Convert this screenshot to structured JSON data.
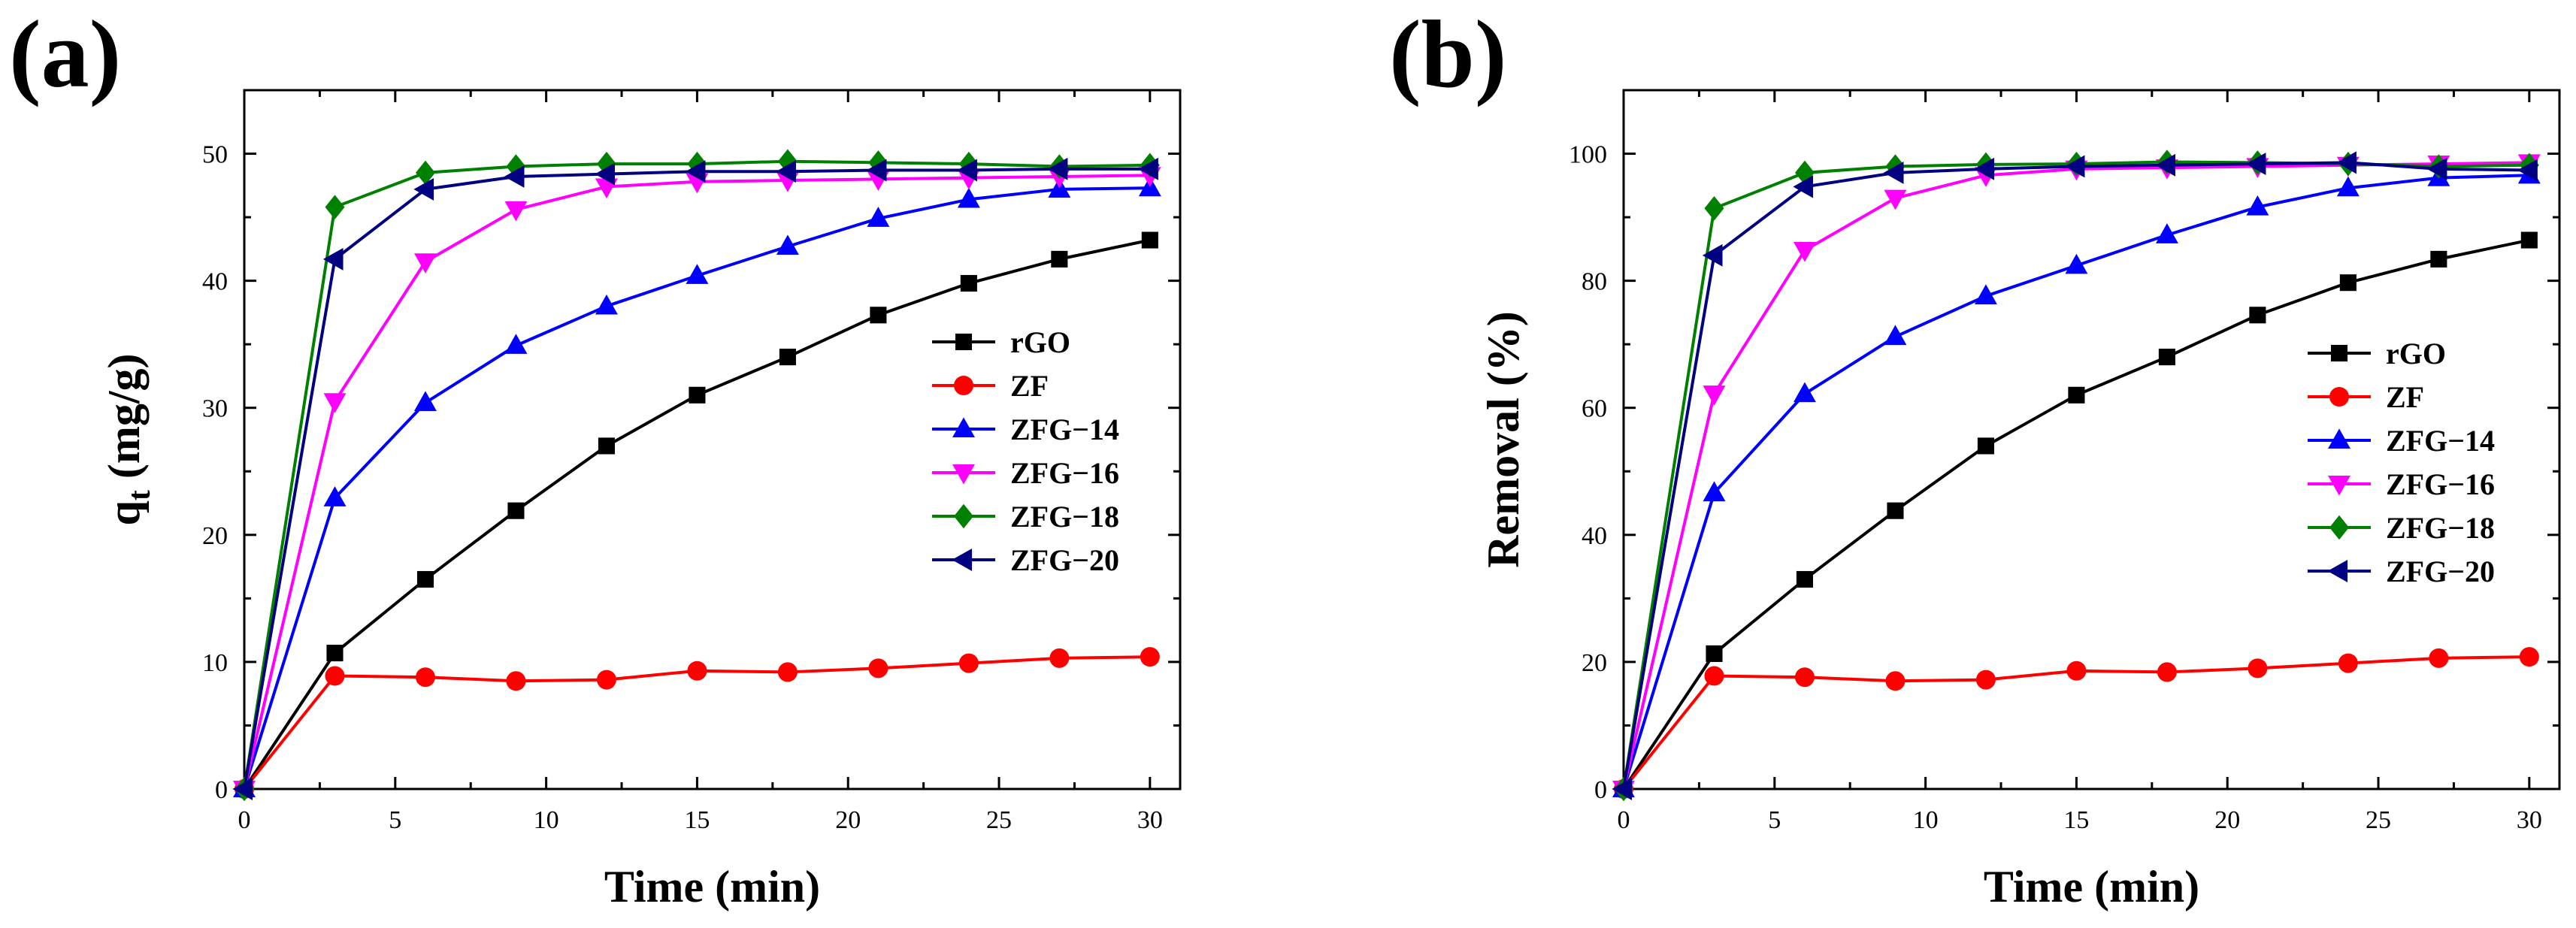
{
  "chart_data": [
    {
      "type": "line",
      "panel_label": "(a)",
      "xlabel": "Time (min)",
      "ylabel": {
        "base": "q",
        "sub": "t",
        "rest": " (mg/g)"
      },
      "xlim": [
        0,
        31
      ],
      "ylim": [
        0,
        55
      ],
      "xticks": [
        0,
        5,
        10,
        15,
        20,
        25,
        30
      ],
      "yticks": [
        0,
        10,
        20,
        30,
        40,
        50
      ],
      "grid": false,
      "legend_position": "right",
      "x": [
        0,
        3,
        6,
        9,
        12,
        15,
        18,
        21,
        24,
        27,
        30
      ],
      "series": [
        {
          "name": "rGO",
          "color": "#000000",
          "marker": "square",
          "values": [
            0,
            10.7,
            16.5,
            21.9,
            27.0,
            31.0,
            34.0,
            37.3,
            39.8,
            41.7,
            43.2
          ]
        },
        {
          "name": "ZF",
          "color": "#ff0000",
          "marker": "circle",
          "values": [
            0,
            8.9,
            8.8,
            8.5,
            8.6,
            9.3,
            9.2,
            9.5,
            9.9,
            10.3,
            10.4
          ]
        },
        {
          "name": "ZFG−14",
          "color": "#0000ff",
          "marker": "triangle-up",
          "values": [
            0,
            22.9,
            30.4,
            34.9,
            38.0,
            40.4,
            42.7,
            44.9,
            46.4,
            47.2,
            47.3
          ]
        },
        {
          "name": "ZFG−16",
          "color": "#ff00ff",
          "marker": "triangle-down",
          "values": [
            0,
            30.5,
            41.5,
            45.6,
            47.4,
            47.8,
            47.9,
            48.0,
            48.1,
            48.2,
            48.3
          ]
        },
        {
          "name": "ZFG−18",
          "color": "#008000",
          "marker": "diamond",
          "values": [
            0,
            45.8,
            48.5,
            49.0,
            49.2,
            49.2,
            49.4,
            49.3,
            49.2,
            49.0,
            49.1
          ]
        },
        {
          "name": "ZFG−20",
          "color": "#000080",
          "marker": "triangle-left",
          "values": [
            0,
            41.7,
            47.2,
            48.2,
            48.4,
            48.6,
            48.6,
            48.7,
            48.7,
            48.8,
            48.8
          ]
        }
      ]
    },
    {
      "type": "line",
      "panel_label": "(b)",
      "xlabel": "Time (min)",
      "ylabel": {
        "base": "Removal (%)",
        "sub": "",
        "rest": ""
      },
      "xlim": [
        0,
        31
      ],
      "ylim": [
        0,
        110
      ],
      "xticks": [
        0,
        5,
        10,
        15,
        20,
        25,
        30
      ],
      "yticks": [
        0,
        20,
        40,
        60,
        80,
        100
      ],
      "grid": false,
      "legend_position": "right",
      "x": [
        0,
        3,
        6,
        9,
        12,
        15,
        18,
        21,
        24,
        27,
        30
      ],
      "series": [
        {
          "name": "rGO",
          "color": "#000000",
          "marker": "square",
          "values": [
            0,
            21.3,
            33.0,
            43.8,
            54.0,
            62.0,
            68.0,
            74.6,
            79.7,
            83.4,
            86.4
          ]
        },
        {
          "name": "ZF",
          "color": "#ff0000",
          "marker": "circle",
          "values": [
            0,
            17.8,
            17.6,
            17.0,
            17.2,
            18.6,
            18.4,
            19.0,
            19.8,
            20.6,
            20.8
          ]
        },
        {
          "name": "ZFG−14",
          "color": "#0000ff",
          "marker": "triangle-up",
          "values": [
            0,
            46.6,
            62.2,
            71.2,
            77.6,
            82.4,
            87.2,
            91.6,
            94.6,
            96.2,
            96.6
          ]
        },
        {
          "name": "ZFG−16",
          "color": "#ff00ff",
          "marker": "triangle-down",
          "values": [
            0,
            62.2,
            84.8,
            93.0,
            96.6,
            97.6,
            97.8,
            98.0,
            98.2,
            98.4,
            98.6
          ]
        },
        {
          "name": "ZFG−18",
          "color": "#008000",
          "marker": "diamond",
          "values": [
            0,
            91.4,
            97.0,
            98.0,
            98.3,
            98.4,
            98.7,
            98.6,
            98.4,
            98.0,
            98.2
          ]
        },
        {
          "name": "ZFG−20",
          "color": "#000080",
          "marker": "triangle-left",
          "values": [
            0,
            84.0,
            94.8,
            97.0,
            97.6,
            98.0,
            98.2,
            98.4,
            98.6,
            97.6,
            97.4
          ]
        }
      ]
    }
  ]
}
